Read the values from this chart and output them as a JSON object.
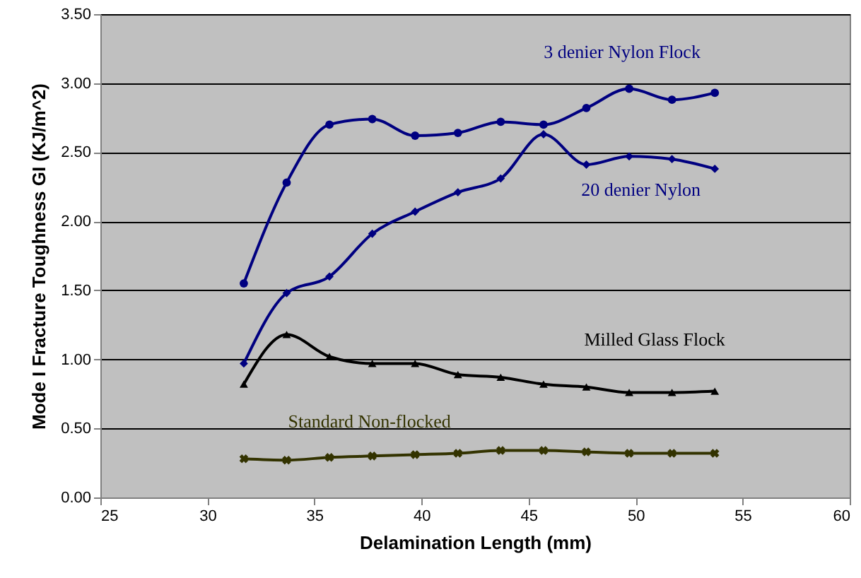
{
  "chart_data": {
    "type": "line",
    "xlabel": "Delamination Length (mm)",
    "ylabel": "Mode I Fracture Toughness GI (KJ/m^2)",
    "x": [
      31.7,
      33.7,
      35.7,
      37.7,
      39.7,
      41.7,
      43.7,
      45.7,
      47.7,
      49.7,
      51.7,
      53.7
    ],
    "xlim": [
      25,
      60
    ],
    "xticks": [
      25,
      30,
      35,
      40,
      45,
      50,
      55,
      60
    ],
    "ylim": [
      0,
      3.5
    ],
    "yticks": [
      {
        "value": 0,
        "label": "0.00"
      },
      {
        "value": 0.5,
        "label": "0.50"
      },
      {
        "value": 1,
        "label": "1.00"
      },
      {
        "value": 1.5,
        "label": "1.50"
      },
      {
        "value": 2,
        "label": "2.00"
      },
      {
        "value": 2.5,
        "label": "2.50"
      },
      {
        "value": 3,
        "label": "3.00"
      },
      {
        "value": 3.5,
        "label": "3.50"
      }
    ],
    "grid": "y",
    "series": [
      {
        "name": "3 denier Nylon Flock",
        "color": "#000080",
        "marker": "circle",
        "values": [
          1.55,
          2.28,
          2.7,
          2.74,
          2.62,
          2.64,
          2.72,
          2.7,
          2.82,
          2.96,
          2.88,
          2.93
        ]
      },
      {
        "name": "20 denier Nylon",
        "color": "#000080",
        "marker": "diamond",
        "values": [
          0.97,
          1.48,
          1.6,
          1.91,
          2.07,
          2.21,
          2.31,
          2.63,
          2.41,
          2.47,
          2.45,
          2.38
        ]
      },
      {
        "name": "Milled Glass Flock",
        "color": "#000000",
        "marker": "triangle",
        "values": [
          0.82,
          1.18,
          1.02,
          0.97,
          0.97,
          0.89,
          0.87,
          0.82,
          0.8,
          0.76,
          0.76,
          0.77
        ]
      },
      {
        "name": "Standard Non-flocked",
        "color": "#333300",
        "marker": "cross",
        "values": [
          0.28,
          0.27,
          0.29,
          0.3,
          0.31,
          0.32,
          0.34,
          0.34,
          0.33,
          0.32,
          0.32,
          0.32
        ]
      }
    ]
  }
}
